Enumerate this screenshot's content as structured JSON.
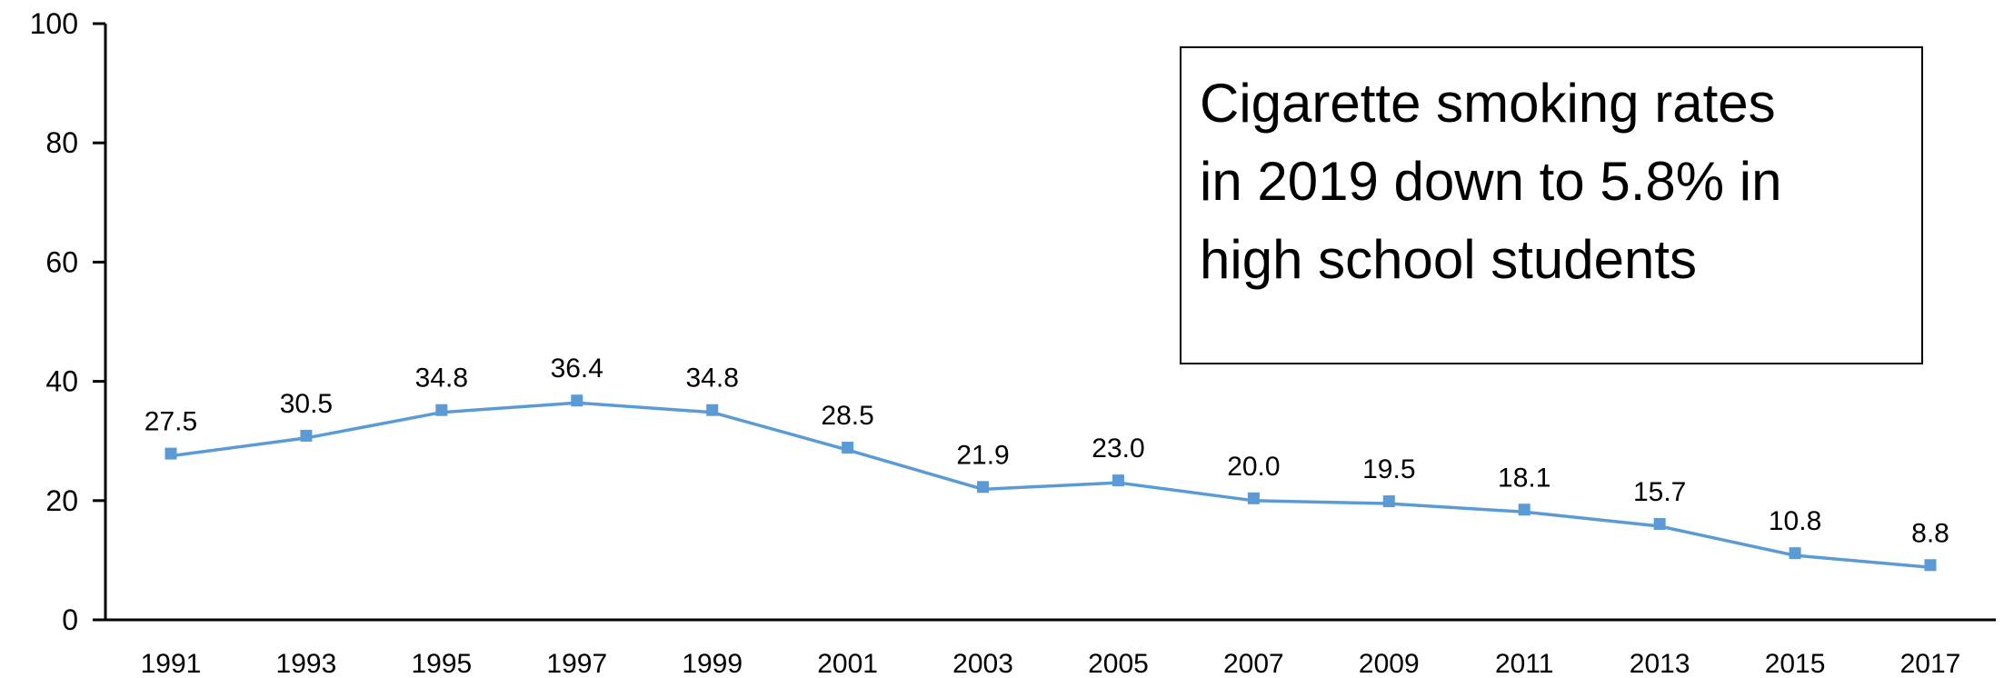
{
  "chart_data": {
    "type": "line",
    "title": "",
    "xlabel": "",
    "ylabel": "",
    "ylim": [
      0,
      100
    ],
    "yticks": [
      0,
      20,
      40,
      60,
      80,
      100
    ],
    "categories": [
      "1991",
      "1993",
      "1995",
      "1997",
      "1999",
      "2001",
      "2003",
      "2005",
      "2007",
      "2009",
      "2011",
      "2013",
      "2015",
      "2017"
    ],
    "series": [
      {
        "values": [
          27.5,
          30.5,
          34.8,
          36.4,
          34.8,
          28.5,
          21.9,
          23.0,
          20.0,
          19.5,
          18.1,
          15.7,
          10.8,
          8.8
        ],
        "labels": [
          "27.5",
          "30.5",
          "34.8",
          "36.4",
          "34.8",
          "28.5",
          "21.9",
          "23.0",
          "20.0",
          "19.5",
          "18.1",
          "15.7",
          "10.8",
          "8.8"
        ],
        "color": "#5b9bd5"
      }
    ],
    "grid": false,
    "legend": "none",
    "annotation": {
      "lines": [
        "Cigarette smoking rates",
        "in 2019 down to 5.8% in",
        "high school students"
      ],
      "placement": "top-right"
    }
  }
}
